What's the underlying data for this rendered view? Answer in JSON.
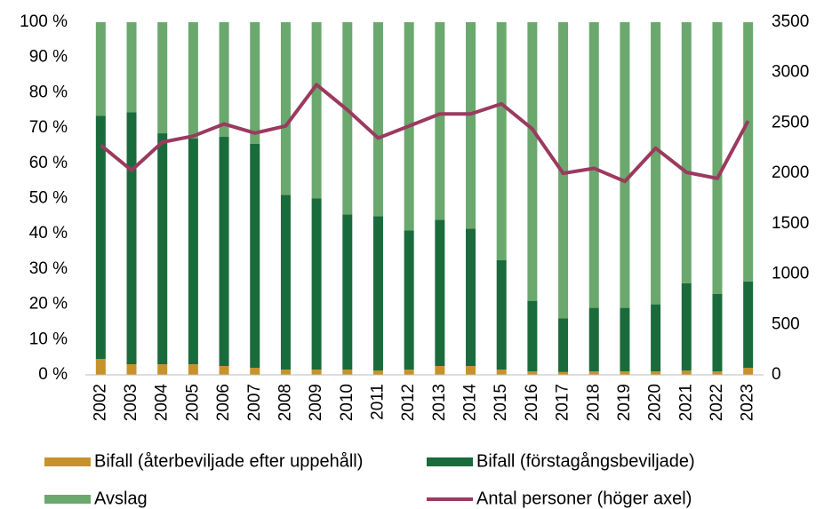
{
  "chart_data": {
    "type": "stacked_bar_line",
    "categories": [
      "2002",
      "2003",
      "2004",
      "2005",
      "2006",
      "2007",
      "2008",
      "2009",
      "2010",
      "2011",
      "2012",
      "2013",
      "2014",
      "2015",
      "2016",
      "2017",
      "2018",
      "2019",
      "2020",
      "2021",
      "2022",
      "2023"
    ],
    "series": [
      {
        "name": "Bifall (återbeviljade efter uppehåll)",
        "color": "#c8922a",
        "type": "bar",
        "values": [
          4.5,
          3,
          3,
          3,
          2.5,
          2,
          1.5,
          1.5,
          1.5,
          1.2,
          1.5,
          2.5,
          2.5,
          1.5,
          1,
          0.8,
          1,
          1,
          1,
          1.2,
          1,
          2
        ]
      },
      {
        "name": "Bifall (förstagångsbeviljade)",
        "color": "#1a6b3c",
        "type": "bar",
        "values": [
          69,
          71.5,
          65.5,
          64,
          65,
          63.5,
          49.5,
          48.5,
          44,
          43.8,
          39.5,
          41.5,
          39,
          31,
          20,
          15.2,
          18,
          18,
          19,
          24.8,
          22,
          24.5
        ]
      },
      {
        "name": "Avslag",
        "color": "#6aa86e",
        "type": "bar",
        "values": [
          26.5,
          25.5,
          31.5,
          33,
          32.5,
          34.5,
          49,
          50,
          54.5,
          55,
          59,
          56,
          58.5,
          67.5,
          79,
          84,
          81,
          81,
          80,
          74,
          77,
          73.5
        ]
      },
      {
        "name": "Antal personer (höger axel)",
        "color": "#9b3a5e",
        "type": "line",
        "axis": "y2",
        "values": [
          2280,
          2030,
          2310,
          2370,
          2490,
          2400,
          2470,
          2880,
          2630,
          2350,
          2470,
          2590,
          2590,
          2690,
          2440,
          2000,
          2050,
          1920,
          2250,
          2010,
          1950,
          2520
        ]
      }
    ],
    "ylim": [
      0,
      100
    ],
    "yticks": [
      {
        "value": 0,
        "label": "0 %"
      },
      {
        "value": 10,
        "label": "10 %"
      },
      {
        "value": 20,
        "label": "20 %"
      },
      {
        "value": 30,
        "label": "30 %"
      },
      {
        "value": 40,
        "label": "40 %"
      },
      {
        "value": 50,
        "label": "50 %"
      },
      {
        "value": 60,
        "label": "60 %"
      },
      {
        "value": 70,
        "label": "70 %"
      },
      {
        "value": 80,
        "label": "80 %"
      },
      {
        "value": 90,
        "label": "90 %"
      },
      {
        "value": 100,
        "label": "100 %"
      }
    ],
    "y2lim": [
      0,
      3500
    ],
    "y2ticks": [
      0,
      500,
      1000,
      1500,
      2000,
      2500,
      3000,
      3500
    ],
    "grid": false,
    "legend": "bottom"
  }
}
